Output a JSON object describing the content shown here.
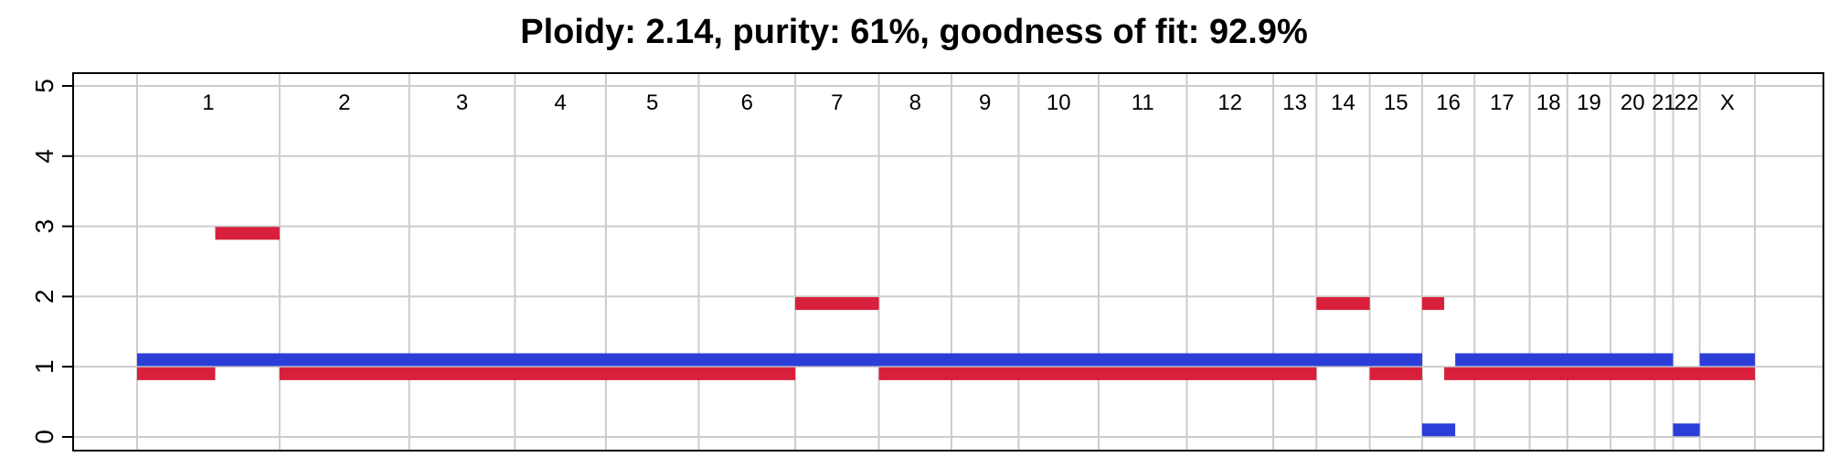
{
  "chart_data": {
    "type": "segment",
    "title": "Ploidy: 2.14, purity: 61%, goodness of fit: 92.9%",
    "xlabel": "",
    "ylabel": "",
    "ylim": [
      0,
      5
    ],
    "y_ticks": [
      "0",
      "1",
      "2",
      "3",
      "4",
      "5"
    ],
    "grid": true,
    "chromosomes": [
      {
        "name": "1",
        "start": 0,
        "end": 1.55
      },
      {
        "name": "2",
        "start": 1.55,
        "end": 2.96
      },
      {
        "name": "3",
        "start": 2.96,
        "end": 4.11
      },
      {
        "name": "4",
        "start": 4.11,
        "end": 5.1
      },
      {
        "name": "5",
        "start": 5.1,
        "end": 6.11
      },
      {
        "name": "6",
        "start": 6.11,
        "end": 7.16
      },
      {
        "name": "7",
        "start": 7.16,
        "end": 8.07
      },
      {
        "name": "8",
        "start": 8.07,
        "end": 8.86
      },
      {
        "name": "9",
        "start": 8.86,
        "end": 9.59
      },
      {
        "name": "10",
        "start": 9.59,
        "end": 10.46
      },
      {
        "name": "11",
        "start": 10.46,
        "end": 11.42
      },
      {
        "name": "12",
        "start": 11.42,
        "end": 12.36
      },
      {
        "name": "13",
        "start": 12.36,
        "end": 12.83
      },
      {
        "name": "14",
        "start": 12.83,
        "end": 13.41
      },
      {
        "name": "15",
        "start": 13.41,
        "end": 13.98
      },
      {
        "name": "16",
        "start": 13.98,
        "end": 14.55
      },
      {
        "name": "17",
        "start": 14.55,
        "end": 15.15
      },
      {
        "name": "18",
        "start": 15.15,
        "end": 15.56
      },
      {
        "name": "19",
        "start": 15.56,
        "end": 16.03
      },
      {
        "name": "20",
        "start": 16.03,
        "end": 16.51
      },
      {
        "name": "21",
        "start": 16.51,
        "end": 16.71
      },
      {
        "name": "22",
        "start": 16.71,
        "end": 17.0
      },
      {
        "name": "X",
        "start": 17.0,
        "end": 17.6
      }
    ],
    "series": [
      {
        "name": "",
        "color": "#2b3ed8",
        "segments": [
          {
            "start": 0,
            "end": 13.98,
            "value": 1.1
          },
          {
            "start": 13.98,
            "end": 14.34,
            "value": 0.1
          },
          {
            "start": 14.34,
            "end": 16.71,
            "value": 1.1
          },
          {
            "start": 16.71,
            "end": 17.0,
            "value": 0.1
          },
          {
            "start": 17.0,
            "end": 17.6,
            "value": 1.1
          }
        ]
      },
      {
        "name": "",
        "color": "#d8203c",
        "segments": [
          {
            "start": 0,
            "end": 0.85,
            "value": 0.9
          },
          {
            "start": 0.85,
            "end": 1.55,
            "value": 2.9
          },
          {
            "start": 1.55,
            "end": 7.16,
            "value": 0.9
          },
          {
            "start": 7.16,
            "end": 8.07,
            "value": 1.9
          },
          {
            "start": 8.07,
            "end": 12.83,
            "value": 0.9
          },
          {
            "start": 12.83,
            "end": 13.41,
            "value": 1.9
          },
          {
            "start": 13.41,
            "end": 13.98,
            "value": 0.9
          },
          {
            "start": 13.98,
            "end": 14.22,
            "value": 1.9
          },
          {
            "start": 14.22,
            "end": 17.6,
            "value": 0.9
          }
        ]
      }
    ]
  }
}
